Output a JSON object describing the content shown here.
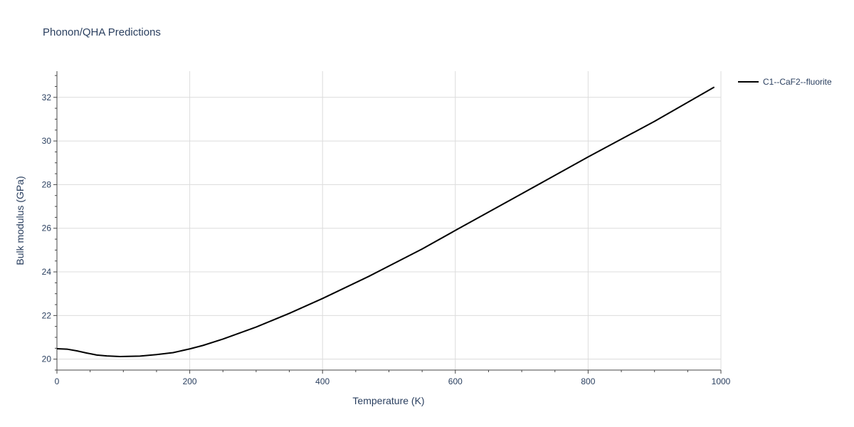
{
  "chart_data": {
    "type": "line",
    "title": "Phonon/QHA Predictions",
    "xlabel": "Temperature (K)",
    "ylabel": "Bulk modulus (GPa)",
    "xlim": [
      0,
      1000
    ],
    "ylim": [
      19.5,
      33.2
    ],
    "xticks": [
      0,
      200,
      400,
      600,
      800,
      1000
    ],
    "yticks": [
      20,
      22,
      24,
      26,
      28,
      30,
      32
    ],
    "grid": true,
    "legend_position": "top-right",
    "series": [
      {
        "name": "C1--CaF2--fluorite",
        "color": "#000000",
        "x": [
          0,
          15,
          30,
          45,
          60,
          75,
          95,
          125,
          150,
          175,
          200,
          220,
          250,
          300,
          350,
          400,
          470,
          550,
          600,
          700,
          800,
          900,
          990
        ],
        "y": [
          20.48,
          20.46,
          20.38,
          20.28,
          20.19,
          20.15,
          20.12,
          20.14,
          20.21,
          20.3,
          20.47,
          20.63,
          20.92,
          21.47,
          22.1,
          22.78,
          23.8,
          25.05,
          25.9,
          27.58,
          29.27,
          30.9,
          32.47
        ]
      }
    ]
  }
}
